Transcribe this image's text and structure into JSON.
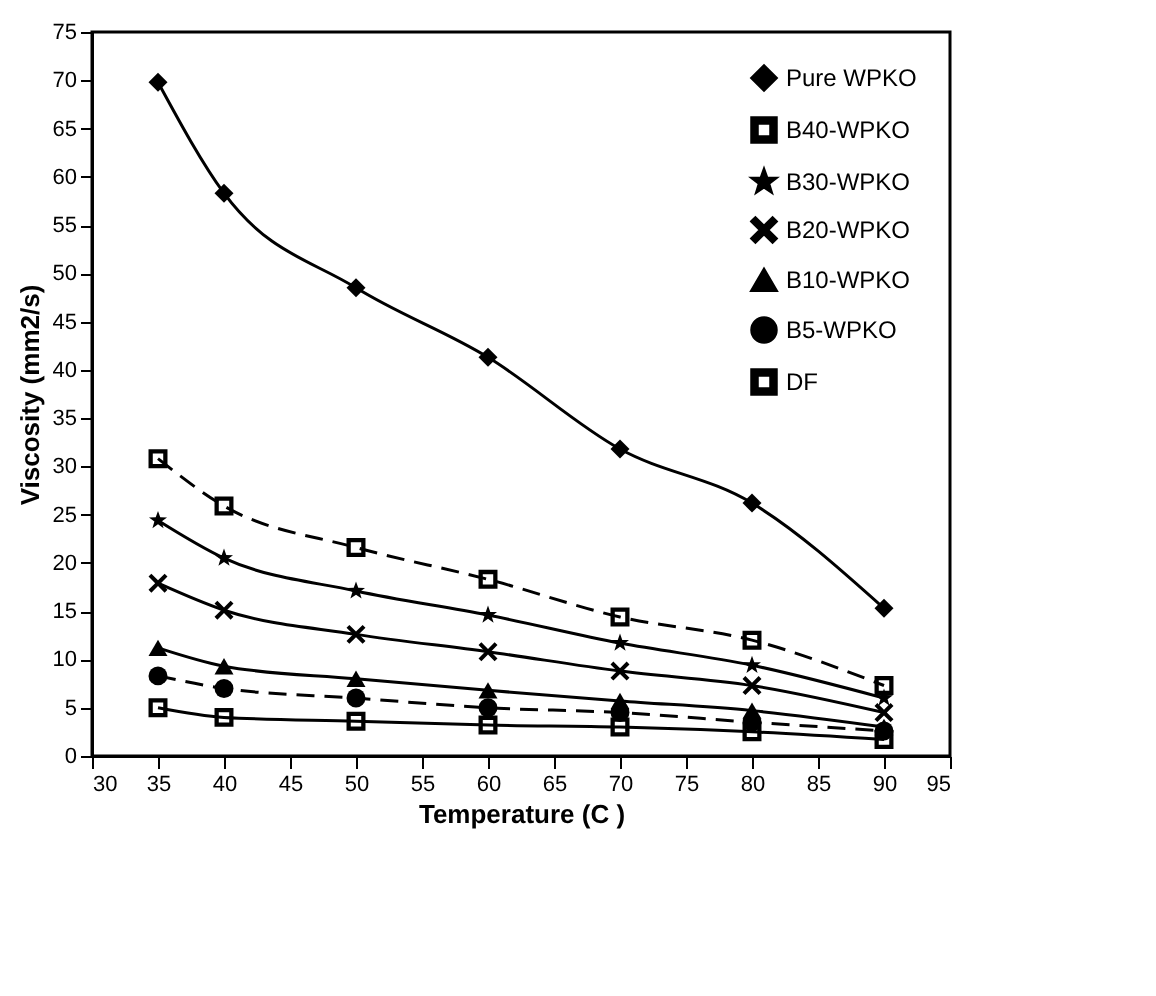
{
  "chart_data": {
    "type": "line",
    "xlabel": "Temperature (C )",
    "ylabel": "Viscosity (mm2/s)",
    "x": [
      35,
      40,
      50,
      60,
      70,
      80,
      90
    ],
    "series": [
      {
        "name": "Pure WPKO",
        "color": "#000000",
        "marker": "diamond",
        "line_style": "solid",
        "values": [
          69.8,
          58.3,
          48.5,
          41.3,
          31.8,
          26.2,
          15.3
        ]
      },
      {
        "name": "B40-WPKO",
        "color": "#000000",
        "marker": "square",
        "line_style": "dashed",
        "values": [
          30.8,
          25.9,
          21.6,
          18.3,
          14.4,
          12.0,
          7.3
        ]
      },
      {
        "name": "B30-WPKO",
        "color": "#000000",
        "marker": "star",
        "line_style": "solid",
        "values": [
          24.4,
          20.5,
          17.1,
          14.6,
          11.7,
          9.4,
          6.0
        ]
      },
      {
        "name": "B20-WPKO",
        "color": "#000000",
        "marker": "cross",
        "line_style": "solid",
        "values": [
          17.9,
          15.1,
          12.6,
          10.8,
          8.8,
          7.3,
          4.5
        ]
      },
      {
        "name": "B10-WPKO",
        "color": "#000000",
        "marker": "triangle",
        "line_style": "solid",
        "values": [
          11.2,
          9.3,
          8.0,
          6.8,
          5.7,
          4.7,
          3.0
        ]
      },
      {
        "name": "B5-WPKO",
        "color": "#000000",
        "marker": "circle",
        "line_style": "dashed",
        "values": [
          8.3,
          7.0,
          6.0,
          5.0,
          4.5,
          3.5,
          2.6
        ]
      },
      {
        "name": "DF",
        "color": "#000000",
        "marker": "square",
        "line_style": "solid",
        "values": [
          5.0,
          4.0,
          3.6,
          3.2,
          3.0,
          2.5,
          1.7
        ]
      }
    ],
    "xlim": [
      30,
      95
    ],
    "xticks": [
      30,
      35,
      40,
      45,
      50,
      55,
      60,
      65,
      70,
      75,
      80,
      85,
      90,
      95
    ],
    "ylim": [
      0,
      75
    ],
    "yticks": [
      0,
      5,
      10,
      15,
      20,
      25,
      30,
      35,
      40,
      45,
      50,
      55,
      60,
      65,
      70,
      75
    ],
    "grid": false,
    "legend": "top right"
  }
}
